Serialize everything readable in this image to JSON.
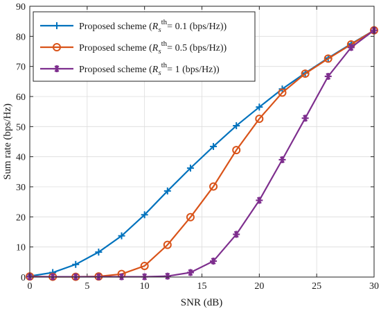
{
  "chart_data": {
    "type": "line",
    "title": "",
    "xlabel": "SNR (dB)",
    "ylabel": "Sum rate (bps/Hz)",
    "xlim": [
      0,
      30
    ],
    "ylim": [
      0,
      90
    ],
    "xticks": [
      0,
      5,
      10,
      15,
      20,
      25,
      30
    ],
    "yticks": [
      0,
      10,
      20,
      30,
      40,
      50,
      60,
      70,
      80,
      90
    ],
    "grid": true,
    "legend_position": "top-left",
    "x": [
      0,
      2,
      4,
      6,
      8,
      10,
      12,
      14,
      16,
      18,
      20,
      22,
      24,
      26,
      28,
      30
    ],
    "series": [
      {
        "name": "Proposed scheme (R_s^th = 0.1 (bps/Hz))",
        "legend": {
          "prefix": "Proposed scheme (",
          "var": "R",
          "sub": "s",
          "sup": "th",
          "suffix": "= 0.1 (bps/Hz))"
        },
        "color": "#0072BD",
        "marker": "plus",
        "values": [
          0.3,
          1.5,
          4.2,
          8.3,
          13.7,
          20.7,
          28.6,
          36.2,
          43.4,
          50.3,
          56.5,
          62.5,
          67.8,
          72.8,
          77.5,
          82.0
        ]
      },
      {
        "name": "Proposed scheme (R_s^th = 0.5 (bps/Hz))",
        "legend": {
          "prefix": "Proposed scheme (",
          "var": "R",
          "sub": "s",
          "sup": "th",
          "suffix": "= 0.5 (bps/Hz))"
        },
        "color": "#D95319",
        "marker": "circle",
        "values": [
          0.2,
          0.1,
          0.1,
          0.2,
          1.0,
          3.7,
          10.7,
          19.9,
          30.1,
          42.2,
          52.6,
          61.3,
          67.6,
          72.6,
          77.3,
          82.0
        ]
      },
      {
        "name": "Proposed scheme (R_s^th = 1 (bps/Hz))",
        "legend": {
          "prefix": "Proposed scheme (",
          "var": "R",
          "sub": "s",
          "sup": "th",
          "suffix": "= 1 (bps/Hz))"
        },
        "color": "#7E2F8E",
        "marker": "asterisk",
        "values": [
          0.1,
          0.1,
          0.1,
          0.1,
          0.1,
          0.1,
          0.3,
          1.5,
          5.3,
          14.2,
          25.5,
          39.0,
          52.8,
          66.7,
          76.3,
          82.0
        ]
      }
    ]
  }
}
